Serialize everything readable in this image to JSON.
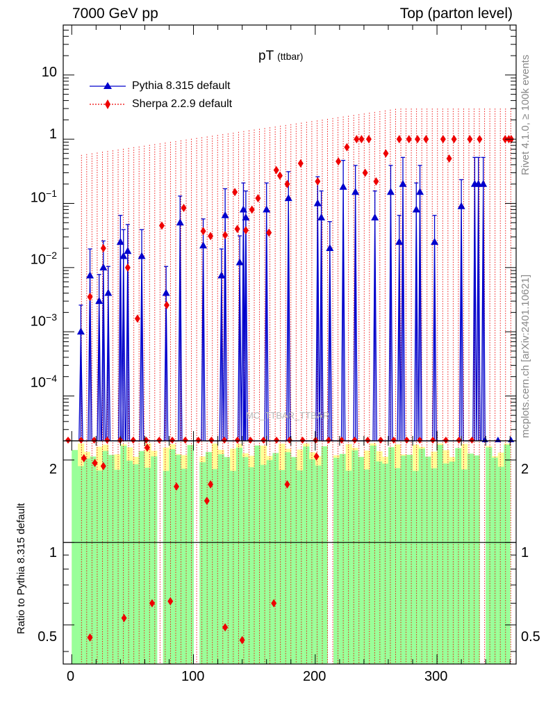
{
  "header": {
    "left": "7000 GeV pp",
    "right": "Top (parton level)"
  },
  "side_labels": {
    "rivet": "Rivet 4.1.0, ≥ 100k events",
    "mcplots": "mcplots.cern.ch [arXiv:2401.10621]"
  },
  "watermark": "MC_TTBAR_TTBAR",
  "ratio_ylabel": "Ratio to Pythia 8.315 default",
  "colors": {
    "pythia": "#0000cc",
    "sherpa": "#ee0000",
    "band_inner": "#99ff99",
    "band_outer": "#ffff99"
  },
  "chart_data": {
    "type": "line",
    "title": "pT",
    "title_sub": "(ttbar)",
    "x_ticks": [
      "0",
      "100",
      "200",
      "300"
    ],
    "xlim": [
      -7,
      365
    ],
    "main": {
      "yscale": "log",
      "ylim": [
        2e-05,
        60
      ],
      "y_ticks": [
        {
          "value": 0.0001,
          "base": "10",
          "exp": "−4"
        },
        {
          "value": 0.001,
          "base": "10",
          "exp": "−3"
        },
        {
          "value": 0.01,
          "base": "10",
          "exp": "−2"
        },
        {
          "value": 0.1,
          "base": "10",
          "exp": "−1"
        },
        {
          "value": 1,
          "base": "1",
          "exp": ""
        },
        {
          "value": 10,
          "base": "10",
          "exp": ""
        }
      ],
      "legend": {
        "position": "top-left"
      },
      "series": [
        {
          "name": "Pythia 8.315 default",
          "marker": "triangle",
          "x": [
            7.5,
            15,
            22.5,
            26,
            30,
            40,
            42.5,
            46,
            57.5,
            77.5,
            89,
            108,
            123,
            126,
            138,
            141,
            143,
            160,
            178,
            202,
            205,
            212,
            223,
            233,
            249,
            262,
            269,
            272,
            283,
            286,
            298,
            320,
            331,
            334,
            338
          ],
          "values": [
            0.001,
            0.0075,
            0.003,
            0.01,
            0.004,
            0.025,
            0.015,
            0.018,
            0.015,
            0.004,
            0.05,
            0.022,
            0.0075,
            0.065,
            0.012,
            0.08,
            0.06,
            0.08,
            0.12,
            0.1,
            0.06,
            0.02,
            0.18,
            0.15,
            0.06,
            0.15,
            0.025,
            0.2,
            0.08,
            0.15,
            0.025,
            0.09,
            0.2,
            0.2,
            0.2
          ]
        },
        {
          "name": "Sherpa 2.2.9 default",
          "marker": "diamond",
          "x": [
            15,
            26,
            46,
            54,
            74,
            78,
            92,
            108,
            114,
            126,
            134,
            136,
            143,
            148,
            153,
            162,
            168,
            171,
            177,
            188,
            202,
            219,
            226,
            234,
            238,
            241,
            244,
            250,
            258,
            269,
            277,
            284,
            291,
            305,
            310,
            314,
            327,
            335,
            356,
            359,
            361
          ],
          "values": [
            0.0035,
            0.02,
            0.01,
            0.0016,
            0.045,
            0.0026,
            0.085,
            0.037,
            0.031,
            0.032,
            0.15,
            0.04,
            0.038,
            0.08,
            0.12,
            0.035,
            0.33,
            0.27,
            0.2,
            0.42,
            0.22,
            0.45,
            0.75,
            1,
            1,
            0.3,
            1,
            0.22,
            0.6,
            1,
            1,
            1,
            1,
            1,
            0.5,
            1,
            1,
            1,
            1,
            1,
            1
          ]
        }
      ]
    },
    "ratio": {
      "ylabel": "Ratio to Pythia 8.315 default",
      "yscale": "log",
      "ylim": [
        0.36,
        2.35
      ],
      "y_ticks": [
        0.5,
        1,
        2
      ],
      "reference": 1,
      "points": {
        "x": [
          10,
          15,
          19,
          26,
          43,
          62,
          66,
          81,
          86,
          111,
          114,
          126,
          140,
          166,
          177,
          201
        ],
        "values": [
          2.03,
          0.45,
          1.95,
          1.9,
          0.53,
          2.22,
          0.6,
          0.61,
          1.6,
          1.42,
          1.63,
          0.49,
          0.44,
          0.6,
          1.63,
          2.06
        ]
      }
    }
  }
}
